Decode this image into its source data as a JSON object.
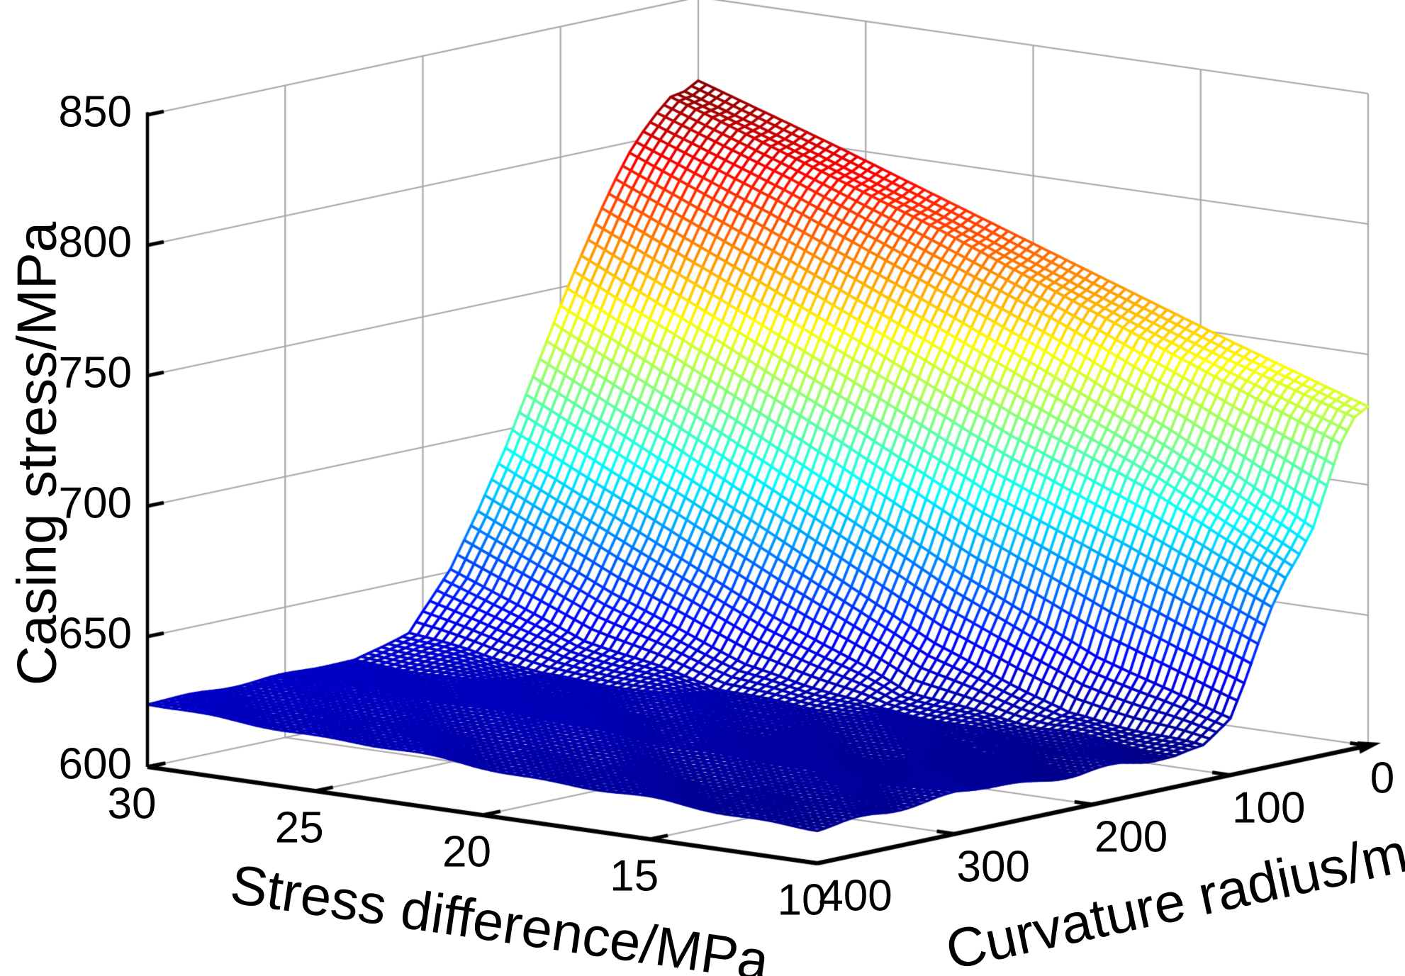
{
  "figure": {
    "background": "#ffffff",
    "axis_color": "#000000",
    "grid_color": "#a8a8a8"
  },
  "chart_data": {
    "type": "surface",
    "title": "",
    "xlabel": "Stress difference/MPa",
    "ylabel": "Curvature radius/m",
    "zlabel": "Casing stress/MPa",
    "x_ticks": [
      30,
      25,
      20,
      15,
      10
    ],
    "y_ticks": [
      400,
      300,
      200,
      100,
      0
    ],
    "z_ticks": [
      600,
      650,
      700,
      750,
      800,
      850
    ],
    "xlim": [
      10,
      30
    ],
    "ylim": [
      0,
      400
    ],
    "zlim": [
      600,
      850
    ],
    "grid": true,
    "legend": null,
    "colormap": "jet",
    "color_range": [
      610,
      818
    ],
    "surface": {
      "x_stress_difference": [
        10,
        14,
        18,
        22,
        26,
        30
      ],
      "y_curvature_radius": [
        0,
        10,
        20,
        30,
        40,
        50,
        60,
        70,
        80,
        90,
        100,
        120,
        140,
        160,
        180,
        210,
        250,
        300,
        350,
        400
      ],
      "z_casing_stress": [
        [
          730,
          727,
          718,
          703,
          688,
          679,
          671,
          661,
          648,
          634,
          622,
          614,
          612,
          612,
          613,
          613,
          614,
          616,
          614,
          613
        ],
        [
          747,
          743,
          738,
          728,
          716,
          706,
          697,
          684,
          670,
          654,
          638,
          618,
          615,
          615,
          615,
          615,
          615,
          616,
          615,
          615
        ],
        [
          765,
          761,
          758,
          751,
          741,
          730,
          718,
          705,
          691,
          677,
          662,
          638,
          622,
          617,
          617,
          617,
          617,
          618,
          617,
          617
        ],
        [
          783,
          780,
          778,
          771,
          763,
          753,
          742,
          730,
          717,
          704,
          690,
          665,
          643,
          627,
          620,
          620,
          620,
          621,
          620,
          620
        ],
        [
          801,
          798,
          796,
          791,
          784,
          775,
          765,
          754,
          742,
          730,
          717,
          692,
          668,
          647,
          631,
          622,
          622,
          623,
          622,
          622
        ],
        [
          818,
          815,
          814,
          809,
          803,
          796,
          787,
          777,
          766,
          755,
          743,
          718,
          693,
          671,
          651,
          630,
          624,
          624,
          624,
          624
        ]
      ]
    }
  }
}
